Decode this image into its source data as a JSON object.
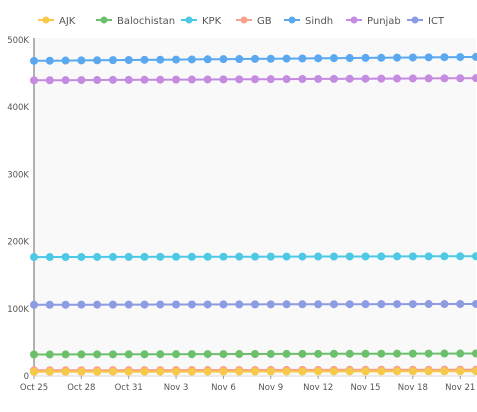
{
  "chart_data": {
    "type": "line",
    "title": "",
    "xlabel": "",
    "ylabel": "",
    "x_ticks": [
      "Oct 25",
      "Oct 28",
      "Oct 31",
      "Nov 3",
      "Nov 6",
      "Nov 9",
      "Nov 12",
      "Nov 15",
      "Nov 18",
      "Nov 21"
    ],
    "x_start": "2020-10-25",
    "x_end": "2020-11-22",
    "y_ticks": [
      "0",
      "100K",
      "200K",
      "300K",
      "400K",
      "500K"
    ],
    "ylim": [
      0,
      500000
    ],
    "grid": false,
    "legend_position": "top",
    "series": [
      {
        "name": "AJK",
        "color": "#f6c94a",
        "start": 6200,
        "end": 7100
      },
      {
        "name": "Balochistan",
        "color": "#6cc06c",
        "start": 32000,
        "end": 33500
      },
      {
        "name": "KPK",
        "color": "#4dc9e6",
        "start": 177000,
        "end": 178200
      },
      {
        "name": "GB",
        "color": "#f7a18a",
        "start": 8500,
        "end": 9500
      },
      {
        "name": "Sindh",
        "color": "#5aa8f0",
        "start": 469000,
        "end": 474800
      },
      {
        "name": "Punjab",
        "color": "#c58be0",
        "start": 440000,
        "end": 443200
      },
      {
        "name": "ICT",
        "color": "#8d9be3",
        "start": 106000,
        "end": 107200
      }
    ]
  }
}
